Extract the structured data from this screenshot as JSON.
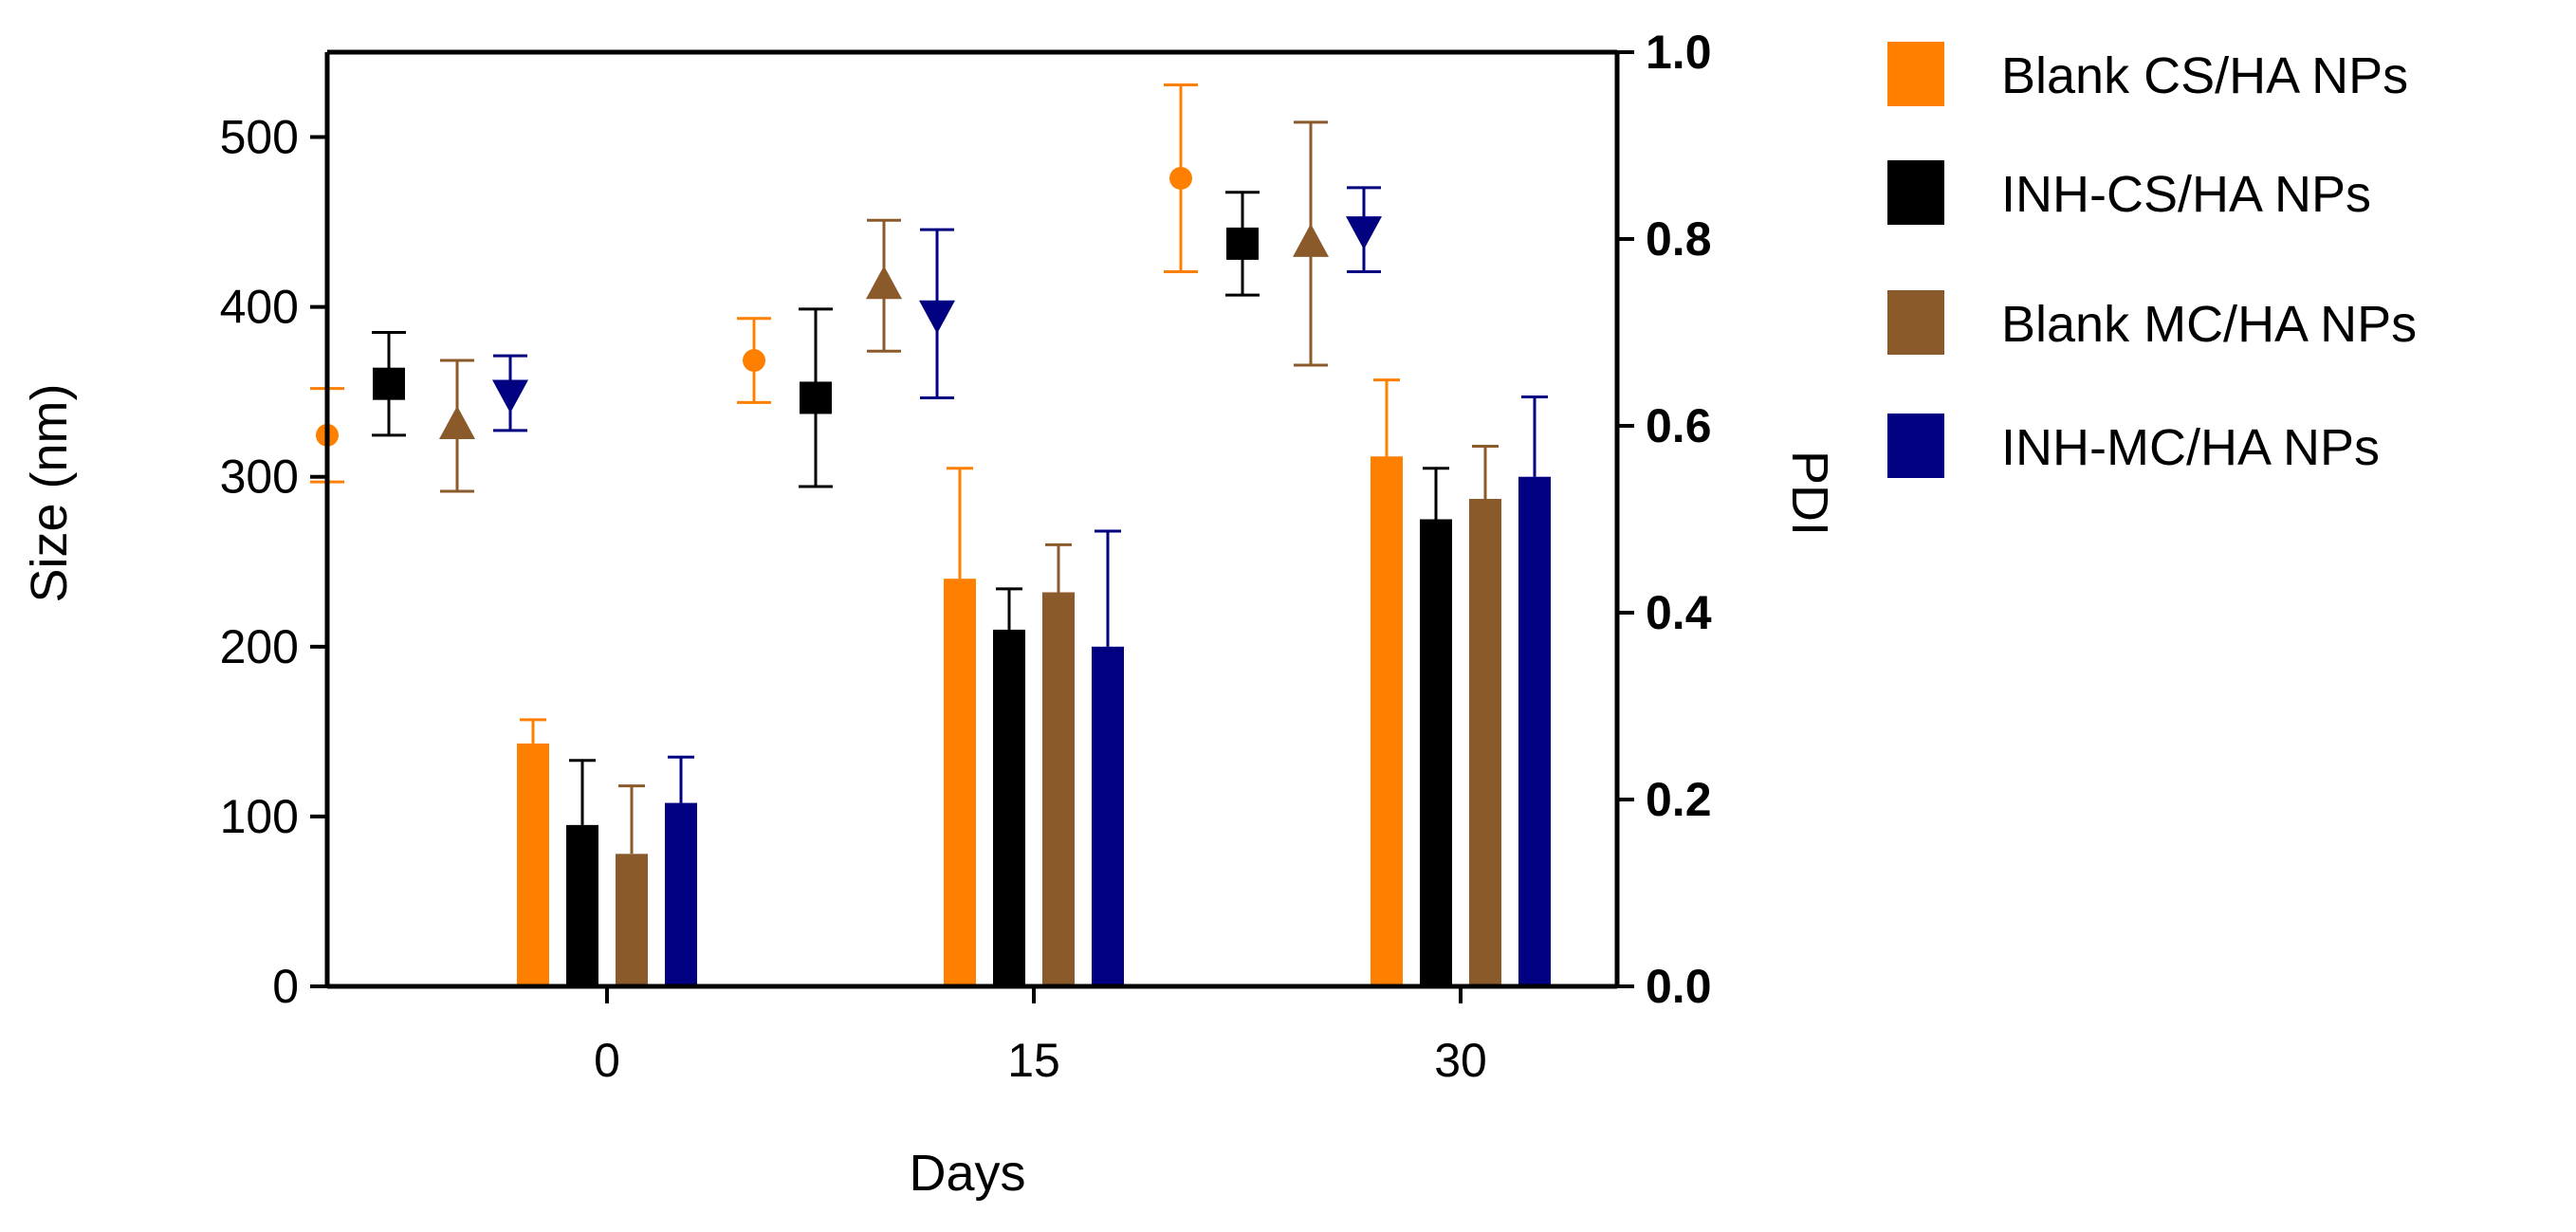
{
  "chart_data": {
    "type": "bar",
    "title": "",
    "xlabel": "Days",
    "ylabel": "Size (nm)",
    "y2label": "PDI",
    "categories": [
      "0",
      "15",
      "30"
    ],
    "ylim": [
      0,
      550
    ],
    "y2lim": [
      0.0,
      1.0
    ],
    "yticks": [
      "0",
      "100",
      "200",
      "300",
      "400",
      "500"
    ],
    "y2ticks": [
      "0.0",
      "0.2",
      "0.4",
      "0.6",
      "0.8",
      "1.0"
    ],
    "legend_position": "right",
    "series": [
      {
        "name": "Blank CS/HA NPs",
        "color": "#ff8000",
        "marker": "circle",
        "size_values": [
          143,
          240,
          312
        ],
        "size_errors": [
          14,
          65,
          45
        ],
        "pdi_values": [
          0.59,
          0.67,
          0.865
        ],
        "pdi_errors": [
          0.05,
          0.045,
          0.1
        ]
      },
      {
        "name": "INH-CS/HA NPs",
        "color": "#000000",
        "marker": "square",
        "size_values": [
          95,
          210,
          275
        ],
        "size_errors": [
          38,
          24,
          30
        ],
        "pdi_values": [
          0.645,
          0.63,
          0.795
        ],
        "pdi_errors": [
          0.055,
          0.095,
          0.055
        ]
      },
      {
        "name": "Blank MC/HA NPs",
        "color": "#8b5a2b",
        "marker": "triangle-up",
        "size_values": [
          78,
          232,
          287
        ],
        "size_errors": [
          40,
          28,
          31
        ],
        "pdi_values": [
          0.6,
          0.75,
          0.795
        ],
        "pdi_errors": [
          0.07,
          0.07,
          0.13
        ]
      },
      {
        "name": "INH-MC/HA NPs",
        "color": "#000080",
        "marker": "triangle-down",
        "size_values": [
          108,
          200,
          300
        ],
        "size_errors": [
          27,
          68,
          47
        ],
        "pdi_values": [
          0.635,
          0.72,
          0.81
        ],
        "pdi_errors": [
          0.04,
          0.09,
          0.045
        ]
      }
    ]
  }
}
